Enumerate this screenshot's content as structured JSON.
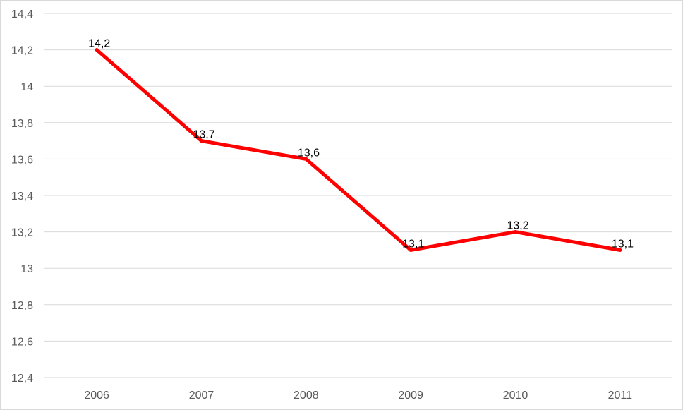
{
  "chart_data": {
    "type": "line",
    "title": "",
    "xlabel": "",
    "ylabel": "",
    "categories": [
      "2006",
      "2007",
      "2008",
      "2009",
      "2010",
      "2011"
    ],
    "series": [
      {
        "values": [
          14.2,
          13.7,
          13.6,
          13.1,
          13.2,
          13.1
        ],
        "color": "#ff0000",
        "data_labels": [
          "14,2",
          "13,7",
          "13,6",
          "13,1",
          "13,2",
          "13,1"
        ]
      }
    ],
    "ylim": [
      12.4,
      14.4
    ],
    "yticks": [
      12.4,
      12.6,
      12.8,
      13,
      13.2,
      13.4,
      13.6,
      13.8,
      14,
      14.2,
      14.4
    ],
    "ytick_labels": [
      "12,4",
      "12,6",
      "12,8",
      "13",
      "13,2",
      "13,4",
      "13,6",
      "13,8",
      "14",
      "14,2",
      "14,4"
    ],
    "grid": true,
    "legend": "none"
  }
}
